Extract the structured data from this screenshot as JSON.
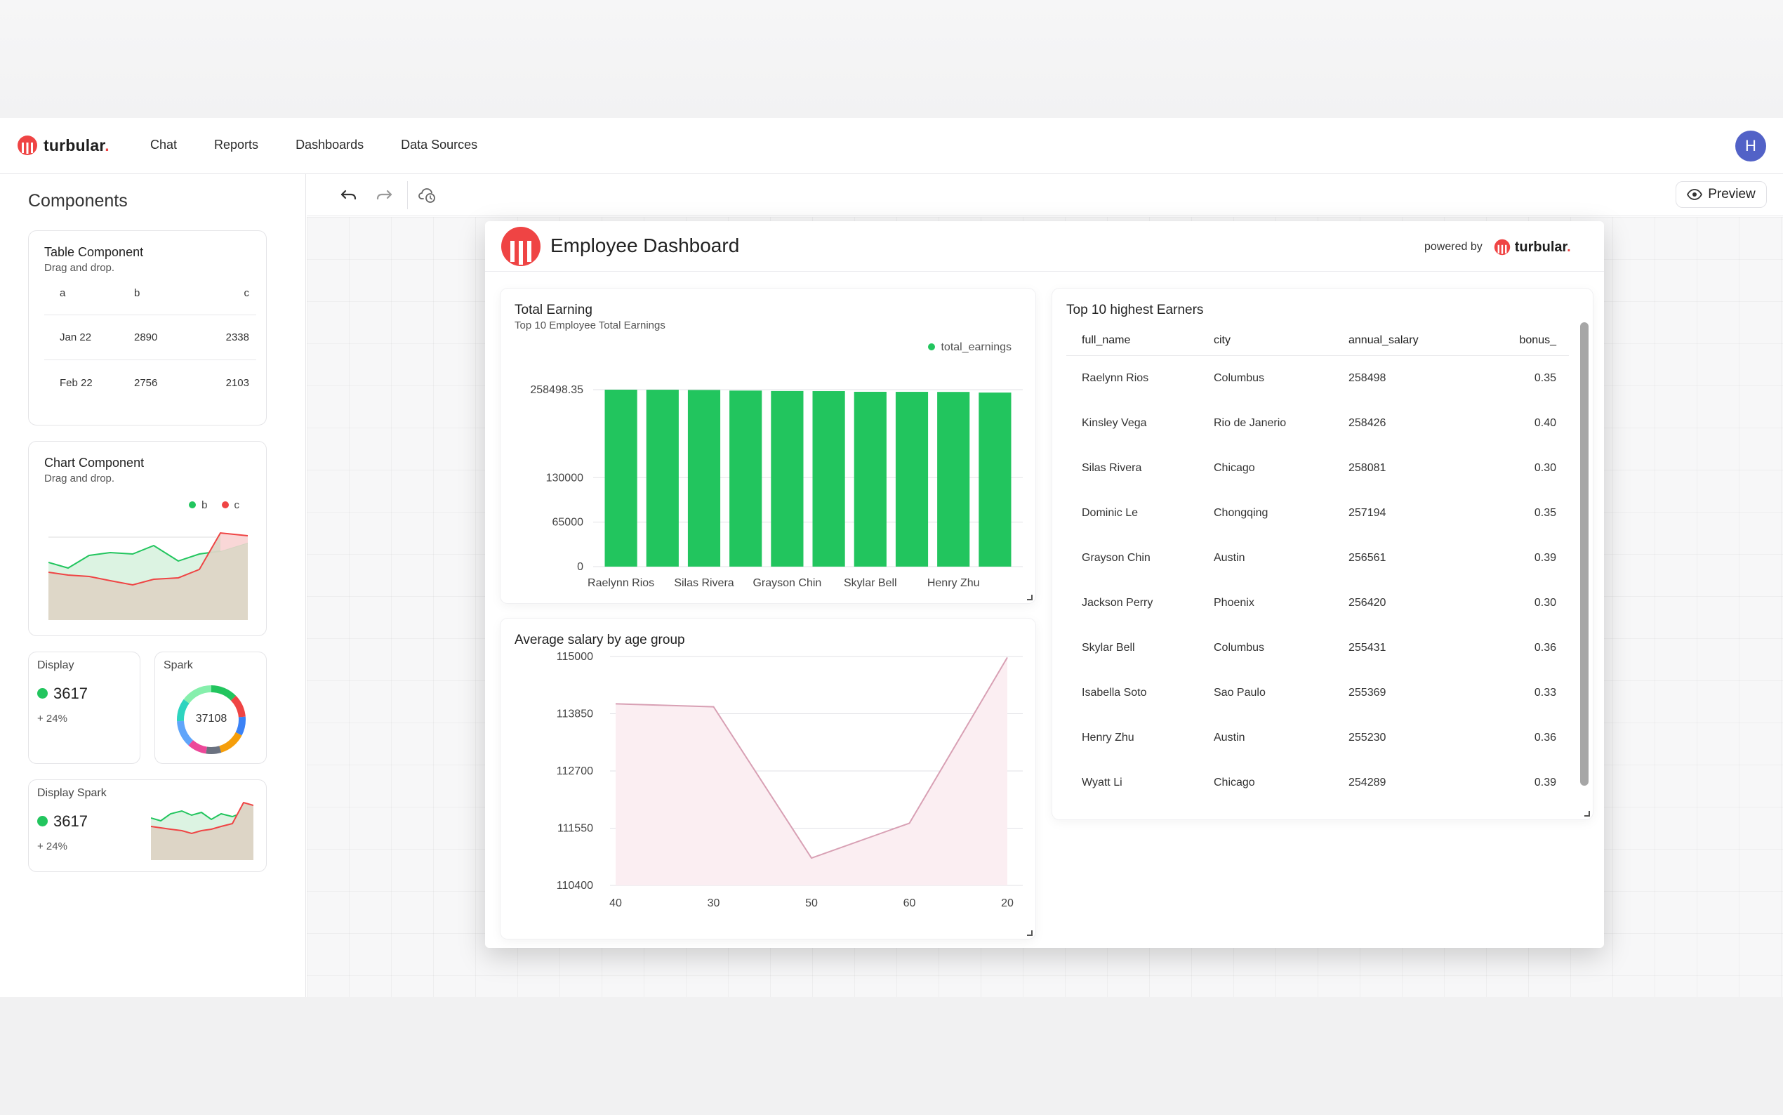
{
  "brand": {
    "name": "turbular",
    "dot": ".",
    "accent": "#ef4444"
  },
  "nav": {
    "items": [
      "Chat",
      "Reports",
      "Dashboards",
      "Data Sources"
    ]
  },
  "user": {
    "avatar_initial": "H",
    "avatar_color": "#5262c7"
  },
  "sidebar": {
    "title": "Components",
    "table_component": {
      "title": "Table Component",
      "subtitle": "Drag and drop.",
      "columns": [
        "a",
        "b",
        "c"
      ],
      "rows": [
        [
          "Jan 22",
          "2890",
          "2338"
        ],
        [
          "Feb 22",
          "2756",
          "2103"
        ]
      ]
    },
    "chart_component": {
      "title": "Chart Component",
      "subtitle": "Drag and drop.",
      "legend": [
        {
          "name": "b",
          "color": "#22c55e"
        },
        {
          "name": "c",
          "color": "#ef4444"
        }
      ]
    },
    "display": {
      "label": "Display",
      "value": "3617",
      "change": "+ 24%"
    },
    "spark": {
      "label": "Spark",
      "value": "37108"
    },
    "display_spark": {
      "label": "Display Spark",
      "value": "3617",
      "change": "+ 24%"
    }
  },
  "toolbar": {
    "undo_icon": "undo-icon",
    "redo_icon": "redo-icon",
    "cloud_icon": "cloud-sync-icon",
    "preview_label": "Preview"
  },
  "dashboard": {
    "title": "Employee Dashboard",
    "powered_by": "powered by",
    "powered_brand": "turbular",
    "total_earning": {
      "title": "Total Earning",
      "subtitle": "Top 10 Employee Total Earnings",
      "legend": "total_earnings"
    },
    "avg_salary": {
      "title": "Average salary by age group"
    },
    "top_earners": {
      "title": "Top 10 highest Earners",
      "columns": [
        "full_name",
        "city",
        "annual_salary",
        "bonus_"
      ],
      "rows": [
        [
          "Raelynn Rios",
          "Columbus",
          "258498",
          "0.35"
        ],
        [
          "Kinsley Vega",
          "Rio de Janerio",
          "258426",
          "0.40"
        ],
        [
          "Silas Rivera",
          "Chicago",
          "258081",
          "0.30"
        ],
        [
          "Dominic Le",
          "Chongqing",
          "257194",
          "0.35"
        ],
        [
          "Grayson Chin",
          "Austin",
          "256561",
          "0.39"
        ],
        [
          "Jackson Perry",
          "Phoenix",
          "256420",
          "0.30"
        ],
        [
          "Skylar Bell",
          "Columbus",
          "255431",
          "0.36"
        ],
        [
          "Isabella Soto",
          "Sao Paulo",
          "255369",
          "0.33"
        ],
        [
          "Henry Zhu",
          "Austin",
          "255230",
          "0.36"
        ],
        [
          "Wyatt Li",
          "Chicago",
          "254289",
          "0.39"
        ]
      ]
    }
  },
  "chart_data": [
    {
      "type": "bar",
      "title": "Total Earning",
      "subtitle": "Top 10 Employee Total Earnings",
      "categories": [
        "Raelynn Rios",
        "Kinsley Vega",
        "Silas Rivera",
        "Dominic Le",
        "Grayson Chin",
        "Jackson Perry",
        "Skylar Bell",
        "Isabella Soto",
        "Henry Zhu",
        "Wyatt Li"
      ],
      "visible_category_labels": [
        "Raelynn Rios",
        "Silas Rivera",
        "Grayson Chin",
        "Skylar Bell",
        "Henry Zhu"
      ],
      "series": [
        {
          "name": "total_earnings",
          "color": "#22c55e",
          "values": [
            258498.35,
            258426,
            258081,
            257194,
            256561,
            256420,
            255431,
            255369,
            255230,
            254289
          ]
        }
      ],
      "yticks": [
        0,
        65000,
        130000,
        258498.35
      ],
      "ytick_labels": [
        "0",
        "65000",
        "130000",
        "258498.35"
      ],
      "ylim": [
        0,
        258498.35
      ],
      "legend": "top-right",
      "grid": true
    },
    {
      "type": "area",
      "title": "Average salary by age group",
      "categories": [
        "40",
        "30",
        "50",
        "60",
        "20"
      ],
      "values": [
        114050,
        113990,
        110950,
        111650,
        114980
      ],
      "color": "#d8a0b4",
      "yticks": [
        110400,
        111550,
        112700,
        113850,
        115000
      ],
      "ylim": [
        110400,
        115000
      ],
      "grid": true
    }
  ]
}
